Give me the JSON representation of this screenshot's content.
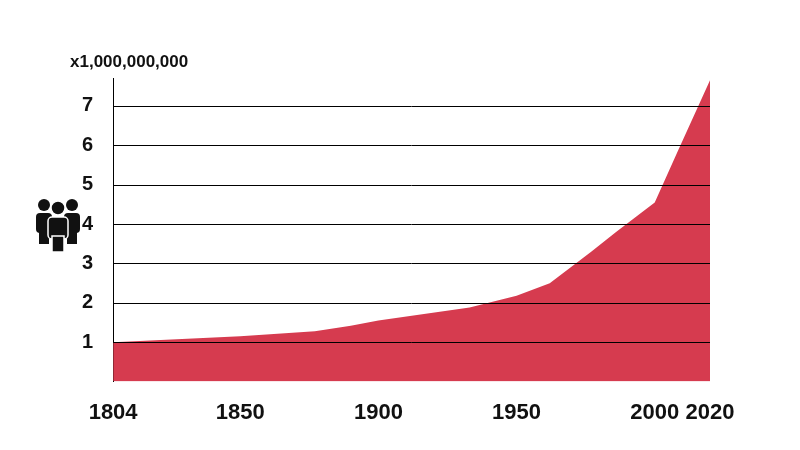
{
  "chart_data": {
    "type": "area",
    "y_label": "x1,000,000,000",
    "x": [
      1804,
      1850,
      1877,
      1890,
      1900,
      1933,
      1950,
      1962,
      1977,
      1986,
      2000,
      2008,
      2020
    ],
    "values": [
      1.0,
      1.15,
      1.28,
      1.42,
      1.55,
      1.88,
      2.18,
      2.5,
      3.3,
      3.8,
      4.55,
      5.8,
      7.65
    ],
    "color": "#d63b4f",
    "xlim": [
      1804,
      2020
    ],
    "xticks": [
      1804,
      1850,
      1900,
      1950,
      2000,
      2020
    ],
    "ylim": [
      0,
      7.7
    ],
    "yticks": [
      1,
      2,
      3,
      4,
      5,
      6,
      7
    ],
    "grid": true
  }
}
